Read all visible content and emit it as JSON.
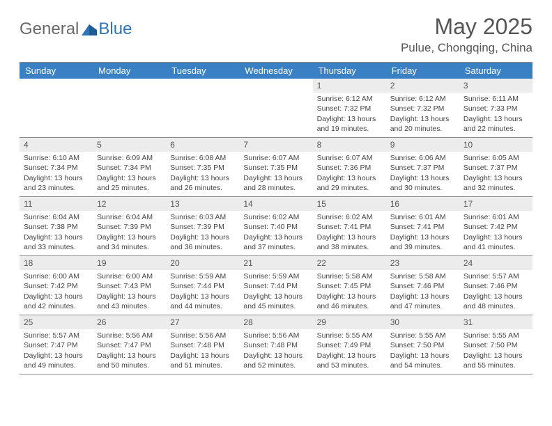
{
  "logo": {
    "general": "General",
    "blue": "Blue"
  },
  "title": "May 2025",
  "location": "Pulue, Chongqing, China",
  "colors": {
    "header_bg": "#3a80c4",
    "header_text": "#ffffff",
    "daynum_bg": "#ececec",
    "daynum_text": "#555555",
    "border": "#8a8a8a",
    "logo_gray": "#6a6a6a",
    "logo_blue": "#2f74b5",
    "body_text": "#444444"
  },
  "dayHeaders": [
    "Sunday",
    "Monday",
    "Tuesday",
    "Wednesday",
    "Thursday",
    "Friday",
    "Saturday"
  ],
  "weeks": [
    [
      {
        "n": "",
        "s": "",
        "ss": "",
        "d": ""
      },
      {
        "n": "",
        "s": "",
        "ss": "",
        "d": ""
      },
      {
        "n": "",
        "s": "",
        "ss": "",
        "d": ""
      },
      {
        "n": "",
        "s": "",
        "ss": "",
        "d": ""
      },
      {
        "n": "1",
        "s": "Sunrise: 6:12 AM",
        "ss": "Sunset: 7:32 PM",
        "d": "Daylight: 13 hours and 19 minutes."
      },
      {
        "n": "2",
        "s": "Sunrise: 6:12 AM",
        "ss": "Sunset: 7:32 PM",
        "d": "Daylight: 13 hours and 20 minutes."
      },
      {
        "n": "3",
        "s": "Sunrise: 6:11 AM",
        "ss": "Sunset: 7:33 PM",
        "d": "Daylight: 13 hours and 22 minutes."
      }
    ],
    [
      {
        "n": "4",
        "s": "Sunrise: 6:10 AM",
        "ss": "Sunset: 7:34 PM",
        "d": "Daylight: 13 hours and 23 minutes."
      },
      {
        "n": "5",
        "s": "Sunrise: 6:09 AM",
        "ss": "Sunset: 7:34 PM",
        "d": "Daylight: 13 hours and 25 minutes."
      },
      {
        "n": "6",
        "s": "Sunrise: 6:08 AM",
        "ss": "Sunset: 7:35 PM",
        "d": "Daylight: 13 hours and 26 minutes."
      },
      {
        "n": "7",
        "s": "Sunrise: 6:07 AM",
        "ss": "Sunset: 7:35 PM",
        "d": "Daylight: 13 hours and 28 minutes."
      },
      {
        "n": "8",
        "s": "Sunrise: 6:07 AM",
        "ss": "Sunset: 7:36 PM",
        "d": "Daylight: 13 hours and 29 minutes."
      },
      {
        "n": "9",
        "s": "Sunrise: 6:06 AM",
        "ss": "Sunset: 7:37 PM",
        "d": "Daylight: 13 hours and 30 minutes."
      },
      {
        "n": "10",
        "s": "Sunrise: 6:05 AM",
        "ss": "Sunset: 7:37 PM",
        "d": "Daylight: 13 hours and 32 minutes."
      }
    ],
    [
      {
        "n": "11",
        "s": "Sunrise: 6:04 AM",
        "ss": "Sunset: 7:38 PM",
        "d": "Daylight: 13 hours and 33 minutes."
      },
      {
        "n": "12",
        "s": "Sunrise: 6:04 AM",
        "ss": "Sunset: 7:39 PM",
        "d": "Daylight: 13 hours and 34 minutes."
      },
      {
        "n": "13",
        "s": "Sunrise: 6:03 AM",
        "ss": "Sunset: 7:39 PM",
        "d": "Daylight: 13 hours and 36 minutes."
      },
      {
        "n": "14",
        "s": "Sunrise: 6:02 AM",
        "ss": "Sunset: 7:40 PM",
        "d": "Daylight: 13 hours and 37 minutes."
      },
      {
        "n": "15",
        "s": "Sunrise: 6:02 AM",
        "ss": "Sunset: 7:41 PM",
        "d": "Daylight: 13 hours and 38 minutes."
      },
      {
        "n": "16",
        "s": "Sunrise: 6:01 AM",
        "ss": "Sunset: 7:41 PM",
        "d": "Daylight: 13 hours and 39 minutes."
      },
      {
        "n": "17",
        "s": "Sunrise: 6:01 AM",
        "ss": "Sunset: 7:42 PM",
        "d": "Daylight: 13 hours and 41 minutes."
      }
    ],
    [
      {
        "n": "18",
        "s": "Sunrise: 6:00 AM",
        "ss": "Sunset: 7:42 PM",
        "d": "Daylight: 13 hours and 42 minutes."
      },
      {
        "n": "19",
        "s": "Sunrise: 6:00 AM",
        "ss": "Sunset: 7:43 PM",
        "d": "Daylight: 13 hours and 43 minutes."
      },
      {
        "n": "20",
        "s": "Sunrise: 5:59 AM",
        "ss": "Sunset: 7:44 PM",
        "d": "Daylight: 13 hours and 44 minutes."
      },
      {
        "n": "21",
        "s": "Sunrise: 5:59 AM",
        "ss": "Sunset: 7:44 PM",
        "d": "Daylight: 13 hours and 45 minutes."
      },
      {
        "n": "22",
        "s": "Sunrise: 5:58 AM",
        "ss": "Sunset: 7:45 PM",
        "d": "Daylight: 13 hours and 46 minutes."
      },
      {
        "n": "23",
        "s": "Sunrise: 5:58 AM",
        "ss": "Sunset: 7:46 PM",
        "d": "Daylight: 13 hours and 47 minutes."
      },
      {
        "n": "24",
        "s": "Sunrise: 5:57 AM",
        "ss": "Sunset: 7:46 PM",
        "d": "Daylight: 13 hours and 48 minutes."
      }
    ],
    [
      {
        "n": "25",
        "s": "Sunrise: 5:57 AM",
        "ss": "Sunset: 7:47 PM",
        "d": "Daylight: 13 hours and 49 minutes."
      },
      {
        "n": "26",
        "s": "Sunrise: 5:56 AM",
        "ss": "Sunset: 7:47 PM",
        "d": "Daylight: 13 hours and 50 minutes."
      },
      {
        "n": "27",
        "s": "Sunrise: 5:56 AM",
        "ss": "Sunset: 7:48 PM",
        "d": "Daylight: 13 hours and 51 minutes."
      },
      {
        "n": "28",
        "s": "Sunrise: 5:56 AM",
        "ss": "Sunset: 7:48 PM",
        "d": "Daylight: 13 hours and 52 minutes."
      },
      {
        "n": "29",
        "s": "Sunrise: 5:55 AM",
        "ss": "Sunset: 7:49 PM",
        "d": "Daylight: 13 hours and 53 minutes."
      },
      {
        "n": "30",
        "s": "Sunrise: 5:55 AM",
        "ss": "Sunset: 7:50 PM",
        "d": "Daylight: 13 hours and 54 minutes."
      },
      {
        "n": "31",
        "s": "Sunrise: 5:55 AM",
        "ss": "Sunset: 7:50 PM",
        "d": "Daylight: 13 hours and 55 minutes."
      }
    ]
  ]
}
